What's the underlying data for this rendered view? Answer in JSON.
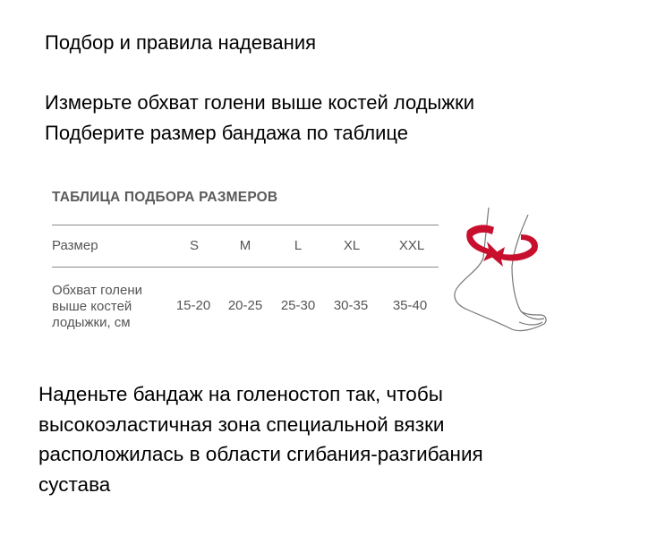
{
  "heading": "Подбор и правила надевания",
  "instructions": [
    "Измерьте обхват голени выше костей лодыжки",
    "Подберите размер бандажа по таблице"
  ],
  "size_table": {
    "title": "ТАБЛИЦА ПОДБОРА РАЗМЕРОВ",
    "header_label": "Размер",
    "sizes": [
      "S",
      "M",
      "L",
      "XL",
      "XXL"
    ],
    "row_label_lines": [
      "Обхват голени",
      "выше костей",
      "лодыжки, см"
    ],
    "values": [
      "15-20",
      "20-25",
      "25-30",
      "30-35",
      "35-40"
    ]
  },
  "illustration": {
    "icon": "ankle-measure-icon",
    "arrow_color": "#c8102e"
  },
  "bottom_text_lines": [
    "Наденьте бандаж на голеностоп так, чтобы",
    "высокоэластичная зона специальной вязки",
    "расположилась в области сгибания-разгибания",
    "сустава"
  ]
}
